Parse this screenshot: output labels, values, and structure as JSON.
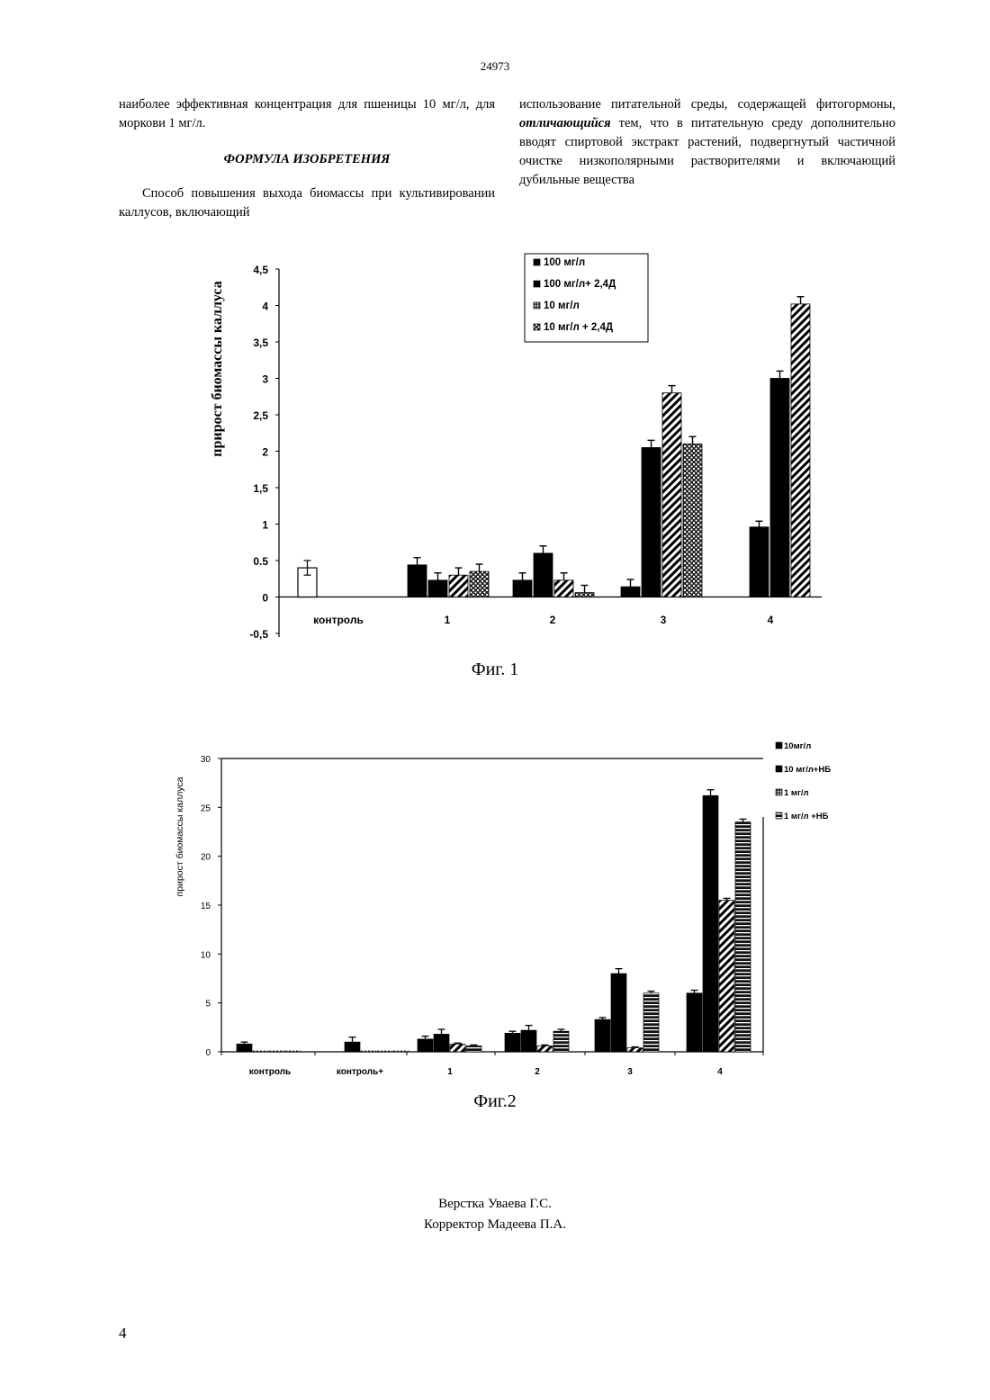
{
  "document_number": "24973",
  "page_number": "4",
  "left_column": {
    "paragraph1": "наиболее эффективная концентрация для пшеницы 10 мг/л, для моркови 1 мг/л.",
    "formula_heading": "ФОРМУЛА ИЗОБРЕТЕНИЯ",
    "paragraph2": "Способ повышения выхода биомассы при культивировании каллусов, включающий"
  },
  "right_column": {
    "part1": "использование питательной среды, содержащей фитогормоны,",
    "emphasis": "отличающийся",
    "part2": "тем, что в питательную среду дополнительно вводят спиртовой экстракт растений, подвергнутый частичной очистке низкополярными растворителями и включающий дубильные вещества"
  },
  "figure1_caption": "Фиг. 1",
  "figure2_caption": "Фиг.2",
  "credits": {
    "line1": "Верстка Уваева Г.С.",
    "line2": "Корректор Мадеева П.А."
  },
  "chart_data": [
    {
      "type": "bar",
      "ylabel": "прирост биомассы каллуса",
      "ylim": [
        -0.5,
        4.5
      ],
      "y_ticks": [
        "4,5",
        "4",
        "3,5",
        "3",
        "2,5",
        "2",
        "1,5",
        "1",
        "0.5",
        "0",
        "-0,5"
      ],
      "categories": [
        "контроль",
        "1",
        "2",
        "3",
        "4"
      ],
      "legend_position": "top-right",
      "control": {
        "value": 0.4,
        "error": 0.1
      },
      "series": [
        {
          "name": "100 мг/л",
          "values": [
            null,
            0.44,
            0.23,
            0.14,
            0.96
          ],
          "errors": [
            null,
            0.1,
            0.1,
            0.1,
            0.08
          ]
        },
        {
          "name": "100 мг/л+ 2,4Д",
          "values": [
            null,
            0.23,
            0.6,
            2.05,
            3.0
          ],
          "errors": [
            null,
            0.1,
            0.1,
            0.1,
            0.1
          ]
        },
        {
          "name": "10 мг/л",
          "values": [
            null,
            0.3,
            0.23,
            2.8,
            4.02
          ],
          "errors": [
            null,
            0.1,
            0.1,
            0.1,
            0.1
          ]
        },
        {
          "name": "10 мг/л + 2,4Д",
          "values": [
            null,
            0.35,
            0.06,
            2.1,
            null
          ],
          "errors": [
            null,
            0.1,
            0.1,
            0.1,
            null
          ]
        }
      ]
    },
    {
      "type": "bar",
      "ylabel": "прирост биомассы каллуса",
      "ylim": [
        0,
        30
      ],
      "y_ticks": [
        "30",
        "25",
        "20",
        "15",
        "10",
        "5",
        "0"
      ],
      "categories": [
        "контроль",
        "контроль+",
        "1",
        "2",
        "3",
        "4"
      ],
      "legend_position": "top-right",
      "series": [
        {
          "name": "10мг/л",
          "values": [
            0.8,
            1.0,
            1.3,
            1.9,
            3.3,
            6.0
          ],
          "errors": [
            0.2,
            0.5,
            0.3,
            0.2,
            0.2,
            0.3
          ]
        },
        {
          "name": "10 мг/л+НБ",
          "values": [
            0.0,
            0.0,
            1.8,
            2.2,
            8.0,
            26.2
          ],
          "errors": [
            0,
            0,
            0.5,
            0.5,
            0.5,
            0.6
          ]
        },
        {
          "name": "1 мг/л",
          "values": [
            0.0,
            0.0,
            0.8,
            0.6,
            0.4,
            15.5
          ],
          "errors": [
            0,
            0,
            0.1,
            0.1,
            0.1,
            0.2
          ]
        },
        {
          "name": "1 мг/л +НБ",
          "values": [
            0.0,
            0.0,
            0.6,
            2.1,
            6.0,
            23.5
          ],
          "errors": [
            0,
            0,
            0.1,
            0.2,
            0.2,
            0.3
          ]
        }
      ]
    }
  ]
}
